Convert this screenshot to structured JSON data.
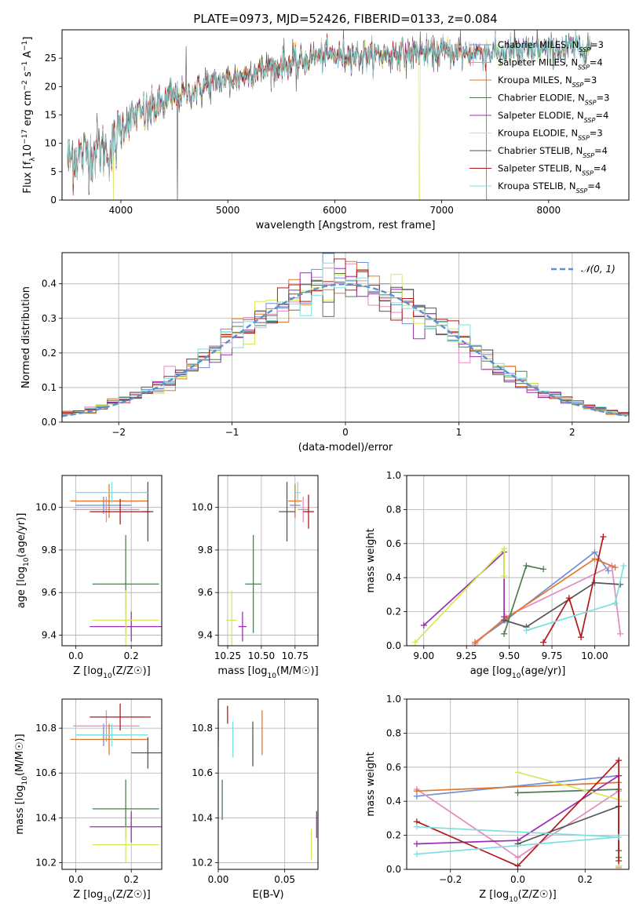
{
  "figure_title": "PLATE=0973, MJD=52426, FIBERID=0133, z=0.084",
  "colors": {
    "Chabrier MILES": "#6f8fd8",
    "Salpeter MILES": "#e38bbf",
    "Kroupa MILES": "#e0782a",
    "Chabrier ELODIE": "#4e7d55",
    "Salpeter ELODIE": "#9b2fb0",
    "Kroupa ELODIE": "#d6e85a",
    "Chabrier STELIB": "#555555",
    "Salpeter STELIB": "#b01a1a",
    "Kroupa STELIB": "#7fdede"
  },
  "chart_data": [
    {
      "id": "spectrum",
      "type": "line",
      "title": "",
      "xlabel": "wavelength [Angstrom, rest frame]",
      "ylabel": "Flux [f_λ10^-17 erg cm^-2 s^-1 A^-1]",
      "xlim": [
        3450,
        8750
      ],
      "ylim": [
        0,
        30
      ],
      "xticks": [
        4000,
        5000,
        6000,
        7000,
        8000
      ],
      "yticks": [
        0,
        5,
        10,
        15,
        20,
        25
      ],
      "grid": false,
      "legend": "right",
      "continuum_knots": [
        [
          3500,
          7
        ],
        [
          3650,
          8
        ],
        [
          3800,
          9
        ],
        [
          3930,
          9
        ],
        [
          4000,
          13
        ],
        [
          4100,
          14.5
        ],
        [
          4300,
          16
        ],
        [
          4500,
          18
        ],
        [
          4700,
          19.5
        ],
        [
          4900,
          21
        ],
        [
          5100,
          21.5
        ],
        [
          5300,
          23
        ],
        [
          5600,
          24
        ],
        [
          5900,
          25.5
        ],
        [
          6100,
          25.5
        ],
        [
          6400,
          25.5
        ],
        [
          6700,
          26
        ],
        [
          7000,
          26
        ],
        [
          7300,
          26
        ],
        [
          7600,
          26.2
        ],
        [
          8000,
          26.5
        ],
        [
          8300,
          27
        ],
        [
          8400,
          27
        ]
      ],
      "series": [
        {
          "name": "Chabrier MILES, N_SSP=3",
          "color": "#6f8fd8"
        },
        {
          "name": "Salpeter MILES, N_SSP=4",
          "color": "#e38bbf"
        },
        {
          "name": "Kroupa MILES, N_SSP=3",
          "color": "#e0782a"
        },
        {
          "name": "Chabrier ELODIE, N_SSP=3",
          "color": "#4e7d55"
        },
        {
          "name": "Salpeter ELODIE, N_SSP=4",
          "color": "#9b2fb0"
        },
        {
          "name": "Kroupa ELODIE, N_SSP=3",
          "color": "#d6e85a"
        },
        {
          "name": "Chabrier STELIB, N_SSP=4",
          "color": "#555555"
        },
        {
          "name": "Salpeter STELIB, N_SSP=4",
          "color": "#b01a1a"
        },
        {
          "name": "Kroupa STELIB, N_SSP=4",
          "color": "#7fdede"
        }
      ]
    },
    {
      "id": "residuals",
      "type": "bar",
      "title": "",
      "xlabel": "(data-model)/error",
      "ylabel": "Normed distribution",
      "xlim": [
        -2.5,
        2.5
      ],
      "ylim": [
        0,
        0.49
      ],
      "xticks": [
        -2,
        -1,
        0,
        1,
        2
      ],
      "yticks": [
        0.0,
        0.1,
        0.2,
        0.3,
        0.4
      ],
      "grid": true,
      "legend": "top-right",
      "reference_curve": {
        "name": "N(0,1)",
        "label": "𝒩(0, 1)",
        "color": "#5b8fd6",
        "style": "dashed"
      }
    },
    {
      "id": "age_vs_Z",
      "type": "scatter",
      "xlabel": "Z [log10(Z/Z☉)]",
      "ylabel": "age  [log10(age/yr)]",
      "xlim": [
        -0.05,
        0.31
      ],
      "ylim": [
        9.35,
        10.15
      ],
      "xticks": [
        0.0,
        0.2
      ],
      "yticks": [
        9.4,
        9.6,
        9.8,
        10.0
      ],
      "grid": true,
      "points": [
        {
          "model": "Chabrier MILES",
          "x": 0.1,
          "xerr": 0.1,
          "y": 10.01,
          "yerr": 0.04
        },
        {
          "model": "Salpeter MILES",
          "x": 0.11,
          "xerr": 0.12,
          "y": 9.99,
          "yerr": 0.06
        },
        {
          "model": "Kroupa MILES",
          "x": 0.12,
          "xerr": 0.14,
          "y": 10.03,
          "yerr": 0.08
        },
        {
          "model": "Chabrier ELODIE",
          "x": 0.18,
          "xerr": 0.12,
          "y": 9.64,
          "yerr": 0.23
        },
        {
          "model": "Salpeter ELODIE",
          "x": 0.2,
          "xerr": 0.15,
          "y": 9.44,
          "yerr": 0.07
        },
        {
          "model": "Kroupa ELODIE",
          "x": 0.18,
          "xerr": 0.12,
          "y": 9.47,
          "yerr": 0.14
        },
        {
          "model": "Chabrier STELIB",
          "x": 0.26,
          "xerr": 0.02,
          "y": 9.98,
          "yerr": 0.14
        },
        {
          "model": "Salpeter STELIB",
          "x": 0.16,
          "xerr": 0.11,
          "y": 9.98,
          "yerr": 0.06
        },
        {
          "model": "Kroupa STELIB",
          "x": 0.13,
          "xerr": 0.13,
          "y": 10.07,
          "yerr": 0.05
        }
      ]
    },
    {
      "id": "age_vs_mass",
      "type": "scatter",
      "xlabel": "mass [log10(M/M☉)]",
      "ylabel": "",
      "xlim": [
        10.18,
        10.92
      ],
      "ylim": [
        9.35,
        10.15
      ],
      "xticks": [
        10.25,
        10.5,
        10.75
      ],
      "yticks": [
        9.4,
        9.6,
        9.8,
        10.0
      ],
      "grid": true,
      "points": [
        {
          "model": "Chabrier MILES",
          "x": 10.75,
          "xerr": 0.04,
          "y": 10.01,
          "yerr": 0.04
        },
        {
          "model": "Salpeter MILES",
          "x": 10.81,
          "xerr": 0.04,
          "y": 9.99,
          "yerr": 0.06
        },
        {
          "model": "Kroupa MILES",
          "x": 10.75,
          "xerr": 0.05,
          "y": 10.03,
          "yerr": 0.08
        },
        {
          "model": "Chabrier ELODIE",
          "x": 10.44,
          "xerr": 0.06,
          "y": 9.64,
          "yerr": 0.23
        },
        {
          "model": "Salpeter ELODIE",
          "x": 10.36,
          "xerr": 0.03,
          "y": 9.44,
          "yerr": 0.07
        },
        {
          "model": "Kroupa ELODIE",
          "x": 10.28,
          "xerr": 0.04,
          "y": 9.47,
          "yerr": 0.14
        },
        {
          "model": "Chabrier STELIB",
          "x": 10.69,
          "xerr": 0.06,
          "y": 9.98,
          "yerr": 0.14
        },
        {
          "model": "Salpeter STELIB",
          "x": 10.85,
          "xerr": 0.04,
          "y": 9.98,
          "yerr": 0.08
        },
        {
          "model": "Kroupa STELIB",
          "x": 10.77,
          "xerr": 0.02,
          "y": 10.07,
          "yerr": 0.05
        }
      ]
    },
    {
      "id": "massweight_vs_age",
      "type": "line",
      "xlabel": "age  [log10(age/yr)]",
      "ylabel": "mass weight",
      "xlim": [
        8.9,
        10.2
      ],
      "ylim": [
        0.0,
        1.0
      ],
      "xticks": [
        9.0,
        9.25,
        9.5,
        9.75,
        10.0
      ],
      "yticks": [
        0.0,
        0.2,
        0.4,
        0.6,
        0.8,
        1.0
      ],
      "grid": true,
      "series": [
        {
          "name": "Chabrier MILES",
          "points": [
            [
              9.3,
              0.02
            ],
            [
              9.48,
              0.15
            ],
            [
              10.0,
              0.55
            ],
            [
              10.08,
              0.44
            ]
          ]
        },
        {
          "name": "Salpeter MILES",
          "points": [
            [
              9.3,
              0.01
            ],
            [
              9.48,
              0.17
            ],
            [
              10.1,
              0.47
            ],
            [
              10.15,
              0.07
            ]
          ]
        },
        {
          "name": "Kroupa MILES",
          "points": [
            [
              9.3,
              0.02
            ],
            [
              9.48,
              0.16
            ],
            [
              10.0,
              0.51
            ],
            [
              10.12,
              0.46
            ]
          ]
        },
        {
          "name": "Chabrier ELODIE",
          "points": [
            [
              9.47,
              0.07
            ],
            [
              9.6,
              0.47
            ],
            [
              9.7,
              0.45
            ]
          ]
        },
        {
          "name": "Salpeter ELODIE",
          "points": [
            [
              9.0,
              0.12
            ],
            [
              9.47,
              0.55
            ],
            [
              9.47,
              0.17
            ]
          ]
        },
        {
          "name": "Kroupa ELODIE",
          "points": [
            [
              8.95,
              0.02
            ],
            [
              9.47,
              0.57
            ],
            [
              9.47,
              0.41
            ]
          ]
        },
        {
          "name": "Chabrier STELIB",
          "points": [
            [
              9.47,
              0.15
            ],
            [
              9.6,
              0.11
            ],
            [
              10.0,
              0.37
            ],
            [
              10.15,
              0.36
            ]
          ]
        },
        {
          "name": "Salpeter STELIB",
          "points": [
            [
              9.7,
              0.02
            ],
            [
              9.85,
              0.28
            ],
            [
              9.92,
              0.05
            ],
            [
              10.05,
              0.64
            ]
          ]
        },
        {
          "name": "Kroupa STELIB",
          "points": [
            [
              9.6,
              0.09
            ],
            [
              10.12,
              0.25
            ],
            [
              10.17,
              0.47
            ]
          ]
        }
      ]
    },
    {
      "id": "mass_vs_Z",
      "type": "scatter",
      "xlabel": "Z [log10(Z/Z☉)]",
      "ylabel": "mass [log10(M/M☉)]",
      "xlim": [
        -0.05,
        0.31
      ],
      "ylim": [
        10.17,
        10.93
      ],
      "xticks": [
        0.0,
        0.2
      ],
      "yticks": [
        10.2,
        10.4,
        10.6,
        10.8
      ],
      "grid": true,
      "points": [
        {
          "model": "Chabrier MILES",
          "x": 0.1,
          "xerr": 0.1,
          "y": 10.77,
          "yerr": 0.05
        },
        {
          "model": "Salpeter MILES",
          "x": 0.11,
          "xerr": 0.12,
          "y": 10.81,
          "yerr": 0.07
        },
        {
          "model": "Kroupa MILES",
          "x": 0.12,
          "xerr": 0.14,
          "y": 10.75,
          "yerr": 0.07
        },
        {
          "model": "Chabrier ELODIE",
          "x": 0.18,
          "xerr": 0.12,
          "y": 10.44,
          "yerr": 0.13
        },
        {
          "model": "Salpeter ELODIE",
          "x": 0.2,
          "xerr": 0.15,
          "y": 10.36,
          "yerr": 0.07
        },
        {
          "model": "Kroupa ELODIE",
          "x": 0.18,
          "xerr": 0.12,
          "y": 10.28,
          "yerr": 0.08
        },
        {
          "model": "Chabrier STELIB",
          "x": 0.26,
          "xerr": 0.06,
          "y": 10.69,
          "yerr": 0.07
        },
        {
          "model": "Salpeter STELIB",
          "x": 0.16,
          "xerr": 0.11,
          "y": 10.85,
          "yerr": 0.06
        },
        {
          "model": "Kroupa STELIB",
          "x": 0.13,
          "xerr": 0.13,
          "y": 10.77,
          "yerr": 0.05
        }
      ]
    },
    {
      "id": "mass_vs_ebv",
      "type": "scatter",
      "xlabel": "E(B-V)",
      "ylabel": "",
      "xlim": [
        0.0,
        0.075
      ],
      "ylim": [
        10.17,
        10.93
      ],
      "xticks": [
        0.0,
        0.05
      ],
      "yticks": [
        10.2,
        10.4,
        10.6,
        10.8
      ],
      "grid": true,
      "points": [
        {
          "model": "Chabrier MILES",
          "x": 0.0,
          "xerr": 0.0,
          "y": 10.77,
          "yerr": 0.05
        },
        {
          "model": "Salpeter MILES",
          "x": 0.0,
          "xerr": 0.0,
          "y": 10.81,
          "yerr": 0.07
        },
        {
          "model": "Kroupa MILES",
          "x": 0.033,
          "xerr": 0.0,
          "y": 10.78,
          "yerr": 0.1
        },
        {
          "model": "Chabrier ELODIE",
          "x": 0.003,
          "xerr": 0.0,
          "y": 10.48,
          "yerr": 0.09
        },
        {
          "model": "Salpeter ELODIE",
          "x": 0.074,
          "xerr": 0.0,
          "y": 10.37,
          "yerr": 0.06
        },
        {
          "model": "Kroupa ELODIE",
          "x": 0.07,
          "xerr": 0.0,
          "y": 10.28,
          "yerr": 0.07
        },
        {
          "model": "Chabrier STELIB",
          "x": 0.026,
          "xerr": 0.0,
          "y": 10.73,
          "yerr": 0.1
        },
        {
          "model": "Salpeter STELIB",
          "x": 0.007,
          "xerr": 0.0,
          "y": 10.86,
          "yerr": 0.04
        },
        {
          "model": "Kroupa STELIB",
          "x": 0.011,
          "xerr": 0.0,
          "y": 10.75,
          "yerr": 0.08
        }
      ]
    },
    {
      "id": "massweight_vs_Z",
      "type": "line",
      "xlabel": "Z [log10(Z/Z☉)]",
      "ylabel": "mass weight",
      "xlim": [
        -0.33,
        0.33
      ],
      "ylim": [
        0.0,
        1.0
      ],
      "xticks": [
        -0.2,
        0.0,
        0.2
      ],
      "yticks": [
        0.0,
        0.2,
        0.4,
        0.6,
        0.8,
        1.0
      ],
      "grid": true,
      "series": [
        {
          "name": "Chabrier MILES",
          "points": [
            [
              -0.3,
              0.43
            ],
            [
              0.3,
              0.55
            ],
            [
              0.3,
              0.02
            ]
          ]
        },
        {
          "name": "Salpeter MILES",
          "points": [
            [
              -0.3,
              0.47
            ],
            [
              0.0,
              0.07
            ],
            [
              0.3,
              0.46
            ],
            [
              0.3,
              0.01
            ]
          ]
        },
        {
          "name": "Kroupa MILES",
          "points": [
            [
              -0.3,
              0.46
            ],
            [
              0.3,
              0.51
            ],
            [
              0.3,
              0.02
            ]
          ]
        },
        {
          "name": "Chabrier ELODIE",
          "points": [
            [
              0.0,
              0.45
            ],
            [
              0.3,
              0.47
            ],
            [
              0.3,
              0.07
            ]
          ]
        },
        {
          "name": "Salpeter ELODIE",
          "points": [
            [
              -0.3,
              0.15
            ],
            [
              0.0,
              0.17
            ],
            [
              0.3,
              0.55
            ]
          ]
        },
        {
          "name": "Kroupa ELODIE",
          "points": [
            [
              0.0,
              0.57
            ],
            [
              0.3,
              0.41
            ],
            [
              0.3,
              0.02
            ]
          ]
        },
        {
          "name": "Chabrier STELIB",
          "points": [
            [
              0.0,
              0.15
            ],
            [
              0.3,
              0.37
            ],
            [
              0.3,
              0.11
            ]
          ]
        },
        {
          "name": "Salpeter STELIB",
          "points": [
            [
              -0.3,
              0.28
            ],
            [
              0.0,
              0.02
            ],
            [
              0.3,
              0.64
            ],
            [
              0.3,
              0.05
            ]
          ]
        },
        {
          "name": "Kroupa STELIB",
          "points": [
            [
              -0.3,
              0.25
            ],
            [
              0.3,
              0.19
            ],
            [
              -0.3,
              0.09
            ]
          ]
        }
      ]
    }
  ]
}
